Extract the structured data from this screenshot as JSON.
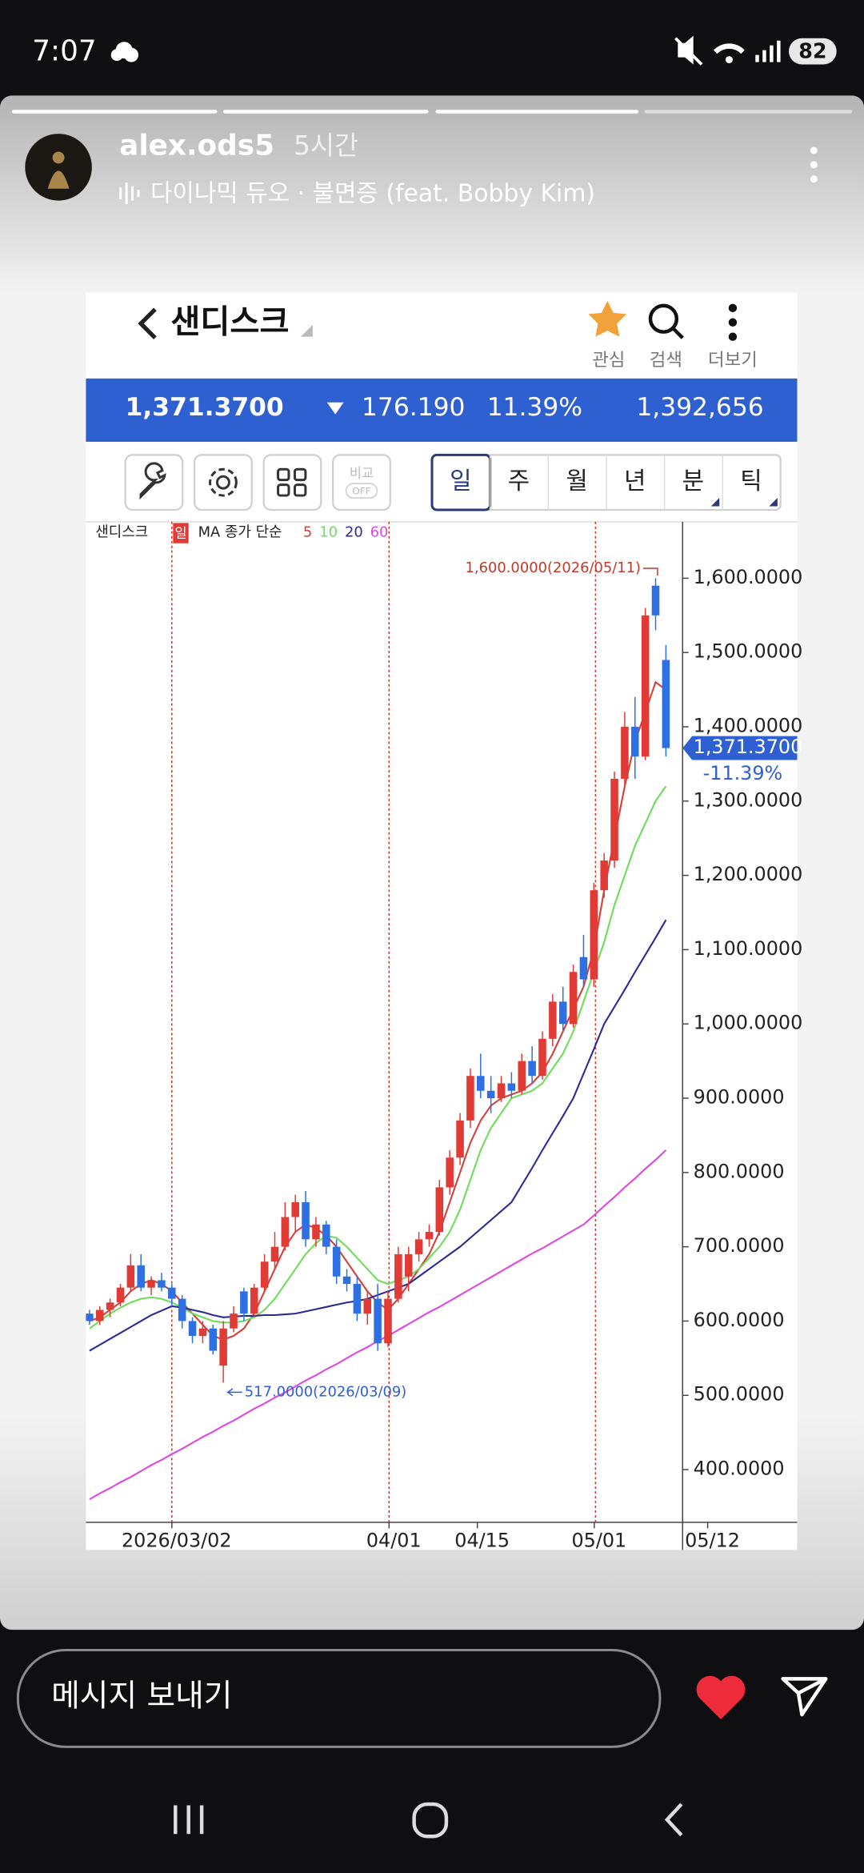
{
  "status_bar": {
    "time": "7:07",
    "battery": "82"
  },
  "story": {
    "username": "alex.ods5",
    "time_ago": "5시간",
    "music": "다이나믹 듀오 · 불면증 (feat. Bobby Kim)"
  },
  "screenshot": {
    "header": {
      "title": "샌디스크",
      "actions": [
        "관심",
        "검색",
        "더보기"
      ]
    },
    "quote": {
      "price": "1,371.3700",
      "change": "176.190",
      "change_rate": "11.39%",
      "volume": "1,392,656"
    },
    "tools": {
      "compare": "비교",
      "compare_state": "OFF"
    },
    "periods": [
      "일",
      "주",
      "월",
      "년",
      "분",
      "틱"
    ],
    "chart_data": {
      "type": "candlestick",
      "legend": {
        "name": "샌디스크",
        "period": "일",
        "ma_label": "MA 종가 단순"
      },
      "up_color": "#e23b35",
      "down_color": "#2f6fe4",
      "candles": [
        [
          610,
          615,
          595,
          600
        ],
        [
          600,
          620,
          595,
          615
        ],
        [
          615,
          630,
          605,
          625
        ],
        [
          625,
          650,
          620,
          645
        ],
        [
          645,
          690,
          640,
          675
        ],
        [
          675,
          690,
          640,
          645
        ],
        [
          645,
          660,
          635,
          655
        ],
        [
          655,
          665,
          640,
          645
        ],
        [
          645,
          650,
          620,
          630
        ],
        [
          630,
          635,
          590,
          600
        ],
        [
          600,
          605,
          570,
          580
        ],
        [
          580,
          600,
          570,
          590
        ],
        [
          590,
          595,
          555,
          560
        ],
        [
          540,
          600,
          517,
          590
        ],
        [
          590,
          620,
          585,
          610
        ],
        [
          640,
          645,
          600,
          610
        ],
        [
          610,
          650,
          605,
          645
        ],
        [
          645,
          690,
          640,
          680
        ],
        [
          680,
          720,
          670,
          700
        ],
        [
          700,
          760,
          695,
          740
        ],
        [
          740,
          770,
          720,
          760
        ],
        [
          760,
          775,
          700,
          710
        ],
        [
          710,
          740,
          700,
          730
        ],
        [
          730,
          735,
          690,
          700
        ],
        [
          700,
          710,
          650,
          660
        ],
        [
          660,
          670,
          640,
          650
        ],
        [
          650,
          660,
          600,
          610
        ],
        [
          610,
          640,
          595,
          630
        ],
        [
          630,
          650,
          560,
          570
        ],
        [
          570,
          640,
          565,
          630
        ],
        [
          630,
          700,
          625,
          690
        ],
        [
          660,
          700,
          640,
          690
        ],
        [
          690,
          720,
          680,
          710
        ],
        [
          710,
          730,
          700,
          720
        ],
        [
          720,
          790,
          715,
          780
        ],
        [
          780,
          830,
          770,
          820
        ],
        [
          820,
          880,
          810,
          870
        ],
        [
          870,
          940,
          860,
          930
        ],
        [
          930,
          960,
          900,
          910
        ],
        [
          910,
          930,
          880,
          900
        ],
        [
          900,
          930,
          895,
          920
        ],
        [
          920,
          935,
          900,
          910
        ],
        [
          910,
          960,
          905,
          950
        ],
        [
          950,
          970,
          920,
          930
        ],
        [
          930,
          990,
          925,
          980
        ],
        [
          980,
          1040,
          970,
          1030
        ],
        [
          1030,
          1050,
          990,
          1000
        ],
        [
          1000,
          1080,
          995,
          1070
        ],
        [
          1090,
          1120,
          1050,
          1060
        ],
        [
          1060,
          1190,
          1050,
          1180
        ],
        [
          1180,
          1230,
          1170,
          1220
        ],
        [
          1220,
          1340,
          1210,
          1330
        ],
        [
          1330,
          1420,
          1320,
          1400
        ],
        [
          1400,
          1440,
          1330,
          1360
        ],
        [
          1360,
          1560,
          1355,
          1550
        ],
        [
          1590,
          1600,
          1530,
          1550
        ],
        [
          1490,
          1510,
          1360,
          1371.37
        ]
      ],
      "series": [
        {
          "name": "5",
          "color": "#d2403a",
          "values": [
            600,
            605,
            615,
            625,
            640,
            650,
            655,
            650,
            640,
            625,
            610,
            595,
            580,
            575,
            580,
            590,
            610,
            640,
            670,
            700,
            720,
            730,
            725,
            715,
            700,
            680,
            660,
            640,
            625,
            615,
            630,
            650,
            670,
            690,
            720,
            760,
            800,
            840,
            870,
            890,
            900,
            905,
            910,
            920,
            935,
            960,
            990,
            1020,
            1050,
            1100,
            1180,
            1250,
            1320,
            1380,
            1420,
            1460,
            1450
          ]
        },
        {
          "name": "10",
          "color": "#6fdc5c",
          "values": [
            590,
            600,
            610,
            618,
            625,
            630,
            632,
            630,
            625,
            618,
            610,
            605,
            600,
            598,
            598,
            600,
            605,
            615,
            630,
            650,
            670,
            690,
            705,
            715,
            712,
            700,
            685,
            670,
            655,
            650,
            655,
            660,
            670,
            685,
            700,
            720,
            750,
            790,
            830,
            860,
            880,
            900,
            905,
            910,
            920,
            940,
            960,
            990,
            1030,
            1070,
            1110,
            1160,
            1200,
            1240,
            1270,
            1300,
            1320
          ]
        },
        {
          "name": "20",
          "color": "#2a2a92",
          "values": [
            560,
            568,
            576,
            584,
            592,
            600,
            608,
            614,
            620,
            618,
            615,
            612,
            608,
            605,
            606,
            607,
            607,
            608,
            608,
            609,
            610,
            613,
            616,
            619,
            622,
            625,
            627,
            630,
            635,
            640,
            645,
            650,
            660,
            670,
            680,
            690,
            700,
            712,
            724,
            736,
            748,
            760,
            783,
            806,
            830,
            853,
            876,
            900,
            933,
            966,
            1000,
            1023,
            1046,
            1070,
            1093,
            1116,
            1140
          ]
        },
        {
          "name": "60",
          "color": "#e046e0",
          "values": [
            360,
            368,
            375,
            383,
            390,
            398,
            406,
            413,
            421,
            428,
            436,
            444,
            451,
            459,
            466,
            474,
            482,
            489,
            497,
            504,
            512,
            520,
            527,
            535,
            542,
            550,
            558,
            565,
            573,
            580,
            588,
            596,
            604,
            612,
            619,
            627,
            635,
            643,
            651,
            659,
            667,
            675,
            683,
            691,
            698,
            706,
            714,
            722,
            730,
            742,
            755,
            767,
            780,
            792,
            805,
            817,
            830
          ]
        }
      ],
      "ylim": [
        329,
        1676
      ],
      "yticks": [
        {
          "value": 1600,
          "label": "1,600.0000"
        },
        {
          "value": 1500,
          "label": "1,500.0000"
        },
        {
          "value": 1400,
          "label": "1,400.0000"
        },
        {
          "value": 1300,
          "label": "1,300.0000"
        },
        {
          "value": 1200,
          "label": "1,200.0000"
        },
        {
          "value": 1100,
          "label": "1,100.0000"
        },
        {
          "value": 1000,
          "label": "1,000.0000"
        },
        {
          "value": 900,
          "label": "900.0000"
        },
        {
          "value": 800,
          "label": "800.0000"
        },
        {
          "value": 700,
          "label": "700.0000"
        },
        {
          "value": 600,
          "label": "600.0000"
        },
        {
          "value": 500,
          "label": "500.0000"
        },
        {
          "value": 400,
          "label": "400.0000"
        }
      ],
      "x_labels": [
        "2026/03/02",
        "04/01",
        "04/15",
        "05/01",
        "05/12"
      ],
      "last_price": {
        "value": 1371.37,
        "label": "1,371.3700",
        "change_label": "-11.39%"
      },
      "annotations": [
        "1,600.0000(2026/05/11)",
        "517.0000(2026/03/09)"
      ]
    }
  },
  "footer": {
    "message_placeholder": "메시지 보내기"
  }
}
